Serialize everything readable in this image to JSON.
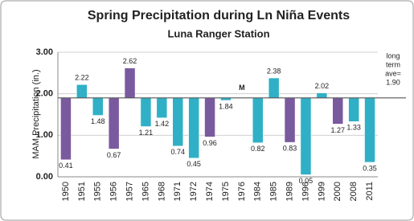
{
  "chart_data": {
    "type": "bar",
    "title": "Spring Precipitation during Ln Niña Events",
    "subtitle": "Luna Ranger Station",
    "y_label": "MAM Precipitation (in.)",
    "categories": [
      "1950",
      "1951",
      "1955",
      "1956",
      "1957",
      "1965",
      "1968",
      "1971",
      "1972",
      "1974",
      "1975",
      "1976",
      "1984",
      "1985",
      "1989",
      "1996",
      "1999",
      "2000",
      "2008",
      "2011"
    ],
    "values": [
      0.41,
      2.22,
      1.48,
      0.67,
      2.62,
      1.21,
      1.42,
      0.74,
      0.45,
      0.96,
      1.84,
      null,
      0.82,
      2.38,
      0.83,
      0.05,
      2.02,
      1.27,
      1.33,
      0.35
    ],
    "value_labels": [
      "0.41",
      "2.22",
      "1.48",
      "0.67",
      "2.62",
      "1.21",
      "1.42",
      "0.74",
      "0.45",
      "0.96",
      "1.84",
      "M",
      "0.82",
      "2.38",
      "0.83",
      "0.05",
      "2.02",
      "1.27",
      "1.33",
      "0.35"
    ],
    "colors": [
      "#7a5a9e",
      "#2fb0c6",
      "#2fb0c6",
      "#7a5a9e",
      "#7a5a9e",
      "#2fb0c6",
      "#2fb0c6",
      "#2fb0c6",
      "#2fb0c6",
      "#7a5a9e",
      "#2fb0c6",
      "#2fb0c6",
      "#2fb0c6",
      "#2fb0c6",
      "#7a5a9e",
      "#2fb0c6",
      "#2fb0c6",
      "#7a5a9e",
      "#2fb0c6",
      "#2fb0c6"
    ],
    "baseline": {
      "lines": [
        "long",
        "term",
        "ave="
      ],
      "value": 1.9,
      "label": "1.90"
    },
    "ylim": [
      0,
      3
    ],
    "yticks": [
      {
        "value": 0,
        "label": "0.00"
      },
      {
        "value": 1,
        "label": "1.00"
      },
      {
        "value": 2,
        "label": "2.00"
      },
      {
        "value": 3,
        "label": "3.00"
      }
    ],
    "grid": true
  }
}
